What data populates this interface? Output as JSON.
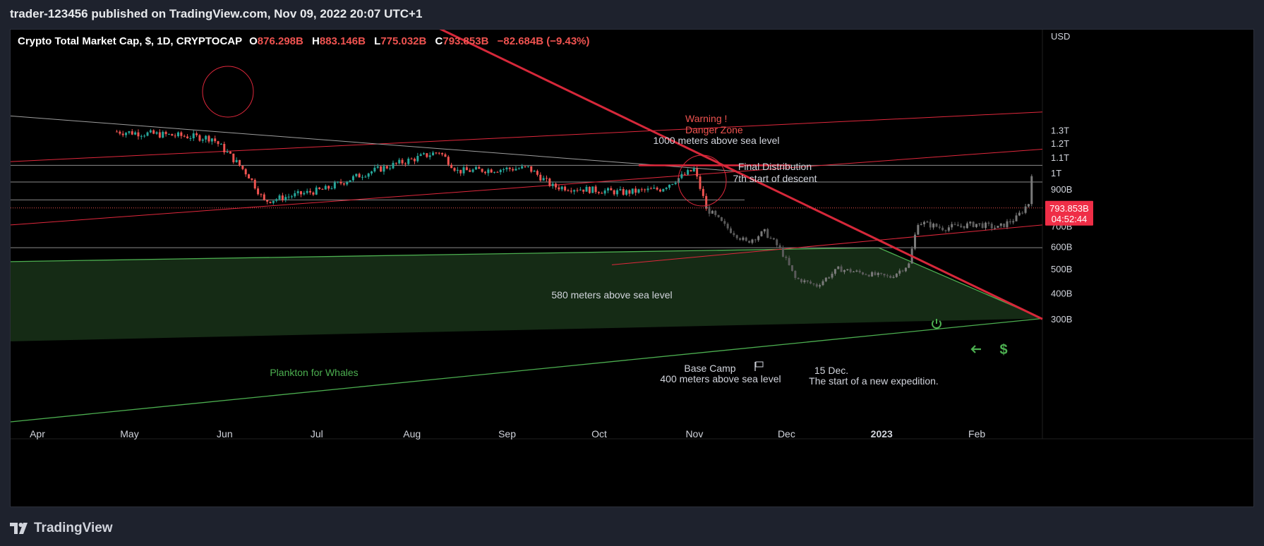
{
  "header": {
    "publisher": "trader-123456",
    "published_text": "published on",
    "site": "TradingView.com",
    "datetime": "Nov 09, 2022 20:07 UTC+1"
  },
  "legend": {
    "symbol": "Crypto Total Market Cap, $, 1D, CRYPTOCAP",
    "o_label": "O",
    "o_value": "876.298B",
    "h_label": "H",
    "h_value": "883.146B",
    "l_label": "L",
    "l_value": "775.032B",
    "c_label": "C",
    "c_value": "793.853B",
    "change": "−82.684B (−9.43%)"
  },
  "price_tag": {
    "value": "793.853B",
    "countdown": "04:52:44"
  },
  "footer": {
    "brand": "TradingView",
    "logo_icon": "tradingview-logo-icon"
  },
  "colors": {
    "up": "#26a69a",
    "down": "#ef5350",
    "projection": "#6b6b6b",
    "trend_red": "#e0283c",
    "zone_green": "#4caf50",
    "zone_fill": "#1c3a1c"
  },
  "icons": {
    "power": "power-icon",
    "arrow": "arrow-left-icon",
    "dollar": "dollar-icon",
    "flag": "flag-icon"
  },
  "chart_data": {
    "type": "candlestick",
    "title": "Crypto Total Market Cap",
    "currency": "USD",
    "timeframe": "1D",
    "exchange": "CRYPTOCAP",
    "x_ticks": [
      "Apr",
      "May",
      "Jun",
      "Jul",
      "Aug",
      "Sep",
      "Oct",
      "Nov",
      "Dec",
      "2023",
      "Feb"
    ],
    "y_axis_unit": "USD",
    "y_ticks": [
      "1.3T",
      "1.2T",
      "1.1T",
      "1T",
      "900B",
      "800B",
      "700B",
      "600B",
      "500B",
      "400B",
      "300B"
    ],
    "y_tick_values": [
      1300,
      1200,
      1100,
      1000,
      900,
      800,
      700,
      600,
      500,
      400,
      300
    ],
    "y_range_billions": [
      230,
      1400
    ],
    "last_close": 793.853,
    "horizontal_levels_billions": [
      1047,
      942,
      838,
      595
    ],
    "key_points_billions": [
      {
        "date": "2022-05-01",
        "close": 1290
      },
      {
        "date": "2022-06-01",
        "close": 1240
      },
      {
        "date": "2022-06-13",
        "close": 980
      },
      {
        "date": "2022-06-18",
        "close": 830
      },
      {
        "date": "2022-07-08",
        "close": 900
      },
      {
        "date": "2022-07-20",
        "close": 990
      },
      {
        "date": "2022-08-14",
        "close": 1140
      },
      {
        "date": "2022-08-20",
        "close": 1010
      },
      {
        "date": "2022-09-12",
        "close": 1030
      },
      {
        "date": "2022-09-20",
        "close": 915
      },
      {
        "date": "2022-10-13",
        "close": 880
      },
      {
        "date": "2022-10-25",
        "close": 900
      },
      {
        "date": "2022-11-05",
        "close": 1020
      },
      {
        "date": "2022-11-09",
        "close": 793.853
      }
    ],
    "projection_points_billions": [
      {
        "date": "2022-11-09",
        "close": 793
      },
      {
        "date": "2022-11-15",
        "close": 700
      },
      {
        "date": "2022-11-22",
        "close": 620
      },
      {
        "date": "2022-11-28",
        "close": 670
      },
      {
        "date": "2022-12-03",
        "close": 590
      },
      {
        "date": "2022-12-08",
        "close": 460
      },
      {
        "date": "2022-12-15",
        "close": 430
      },
      {
        "date": "2022-12-22",
        "close": 500
      },
      {
        "date": "2022-12-31",
        "close": 480
      },
      {
        "date": "2023-01-08",
        "close": 465
      },
      {
        "date": "2023-01-14",
        "close": 520
      },
      {
        "date": "2023-01-17",
        "close": 720
      },
      {
        "date": "2023-01-25",
        "close": 690
      },
      {
        "date": "2023-02-05",
        "close": 710
      },
      {
        "date": "2023-02-12",
        "close": 690
      },
      {
        "date": "2023-02-18",
        "close": 740
      },
      {
        "date": "2023-02-22",
        "close": 820
      },
      {
        "date": "2023-02-23",
        "close": 1000
      }
    ],
    "annotations": [
      {
        "text": "Warning !",
        "color": "red"
      },
      {
        "text": "Danger Zone",
        "color": "red"
      },
      {
        "text": "1000 meters above sea level"
      },
      {
        "text": "Final Distribution"
      },
      {
        "text": "7th start of descent"
      },
      {
        "text": "580 meters above sea level"
      },
      {
        "text": "Plankton for Whales",
        "color": "green"
      },
      {
        "text": "Base Camp"
      },
      {
        "text": "400 meters above sea level"
      },
      {
        "text": "15 Dec."
      },
      {
        "text": "The start of a new expedition."
      }
    ]
  }
}
